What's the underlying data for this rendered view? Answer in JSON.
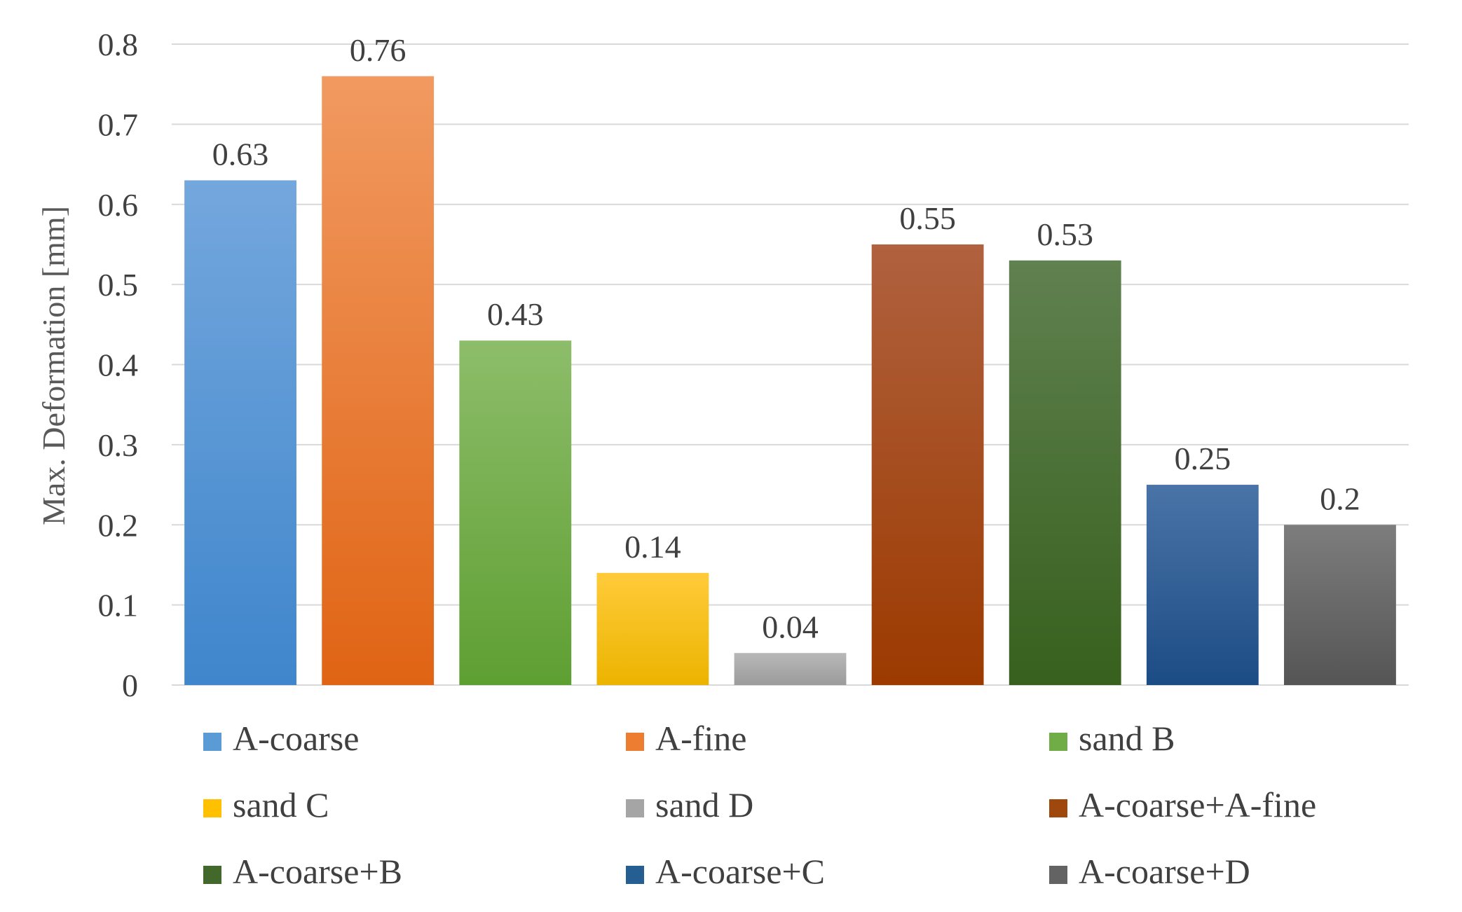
{
  "chart_data": {
    "type": "bar",
    "title": "",
    "xlabel": "",
    "ylabel": "Max. Deformation [mm]",
    "ylim": [
      0,
      0.8
    ],
    "yticks": [
      "0",
      "0.1",
      "0.2",
      "0.3",
      "0.4",
      "0.5",
      "0.6",
      "0.7",
      "0.8"
    ],
    "grid": true,
    "legend_position": "bottom",
    "series": [
      {
        "name": "A-coarse",
        "value": 0.63,
        "label": "0.63",
        "color_top": "#74a7dd",
        "color_bottom": "#3f86cc",
        "legend_color": "#5b9bd5"
      },
      {
        "name": "A-fine",
        "value": 0.76,
        "label": "0.76",
        "color_top": "#f19a61",
        "color_bottom": "#e06414",
        "legend_color": "#ed7d31"
      },
      {
        "name": "sand B",
        "value": 0.43,
        "label": "0.43",
        "color_top": "#8dbd6a",
        "color_bottom": "#5e9f32",
        "legend_color": "#70ad47"
      },
      {
        "name": "sand C",
        "value": 0.14,
        "label": "0.14",
        "color_top": "#ffcb3a",
        "color_bottom": "#ecb400",
        "legend_color": "#ffc000"
      },
      {
        "name": "sand D",
        "value": 0.04,
        "label": "0.04",
        "color_top": "#b8b8b8",
        "color_bottom": "#9b9b9b",
        "legend_color": "#a5a5a5"
      },
      {
        "name": "A-coarse+A-fine",
        "value": 0.55,
        "label": "0.55",
        "color_top": "#b0613f",
        "color_bottom": "#9c3a00",
        "legend_color": "#9e480e"
      },
      {
        "name": "A-coarse+B",
        "value": 0.53,
        "label": "0.53",
        "color_top": "#608150",
        "color_bottom": "#37601d",
        "legend_color": "#43682b"
      },
      {
        "name": "A-coarse+C",
        "value": 0.25,
        "label": "0.25",
        "color_top": "#4a74a8",
        "color_bottom": "#1c4c84",
        "legend_color": "#255e91"
      },
      {
        "name": "A-coarse+D",
        "value": 0.2,
        "label": "0.2",
        "color_top": "#7d7d7d",
        "color_bottom": "#555555",
        "legend_color": "#636363"
      }
    ]
  }
}
